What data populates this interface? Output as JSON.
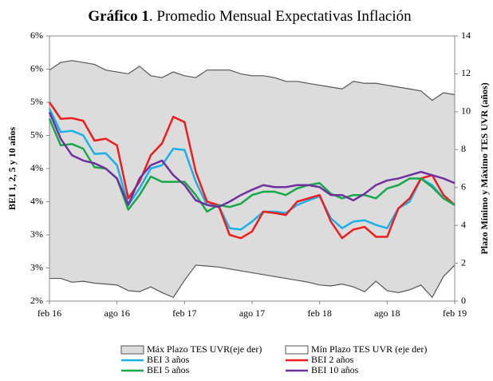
{
  "chart_data": {
    "type": "line",
    "title_bold": "Gráfico 1",
    "title": ". Promedio Mensual Expectativas Inflación",
    "y_label": "BEI 1, 2, 5 y 10 años",
    "y2_label": "Plazo Mínimo y Máximo TES UVR (años)",
    "categories": [
      "feb 16",
      null,
      null,
      null,
      null,
      null,
      "ago 16",
      null,
      null,
      null,
      null,
      null,
      "feb 17",
      null,
      null,
      null,
      null,
      null,
      "ago 17",
      null,
      null,
      null,
      null,
      null,
      "feb 18",
      null,
      null,
      null,
      null,
      null,
      "ago 18",
      null,
      null,
      null,
      null,
      null,
      "feb 19"
    ],
    "ylim": [
      2,
      6
    ],
    "yticks": [
      {
        "value": 2,
        "label": "2%"
      },
      {
        "value": 2.5,
        "label": "3%"
      },
      {
        "value": 3,
        "label": "3%"
      },
      {
        "value": 3.5,
        "label": "4%"
      },
      {
        "value": 4,
        "label": "4%"
      },
      {
        "value": 4.5,
        "label": "5%"
      },
      {
        "value": 5,
        "label": "5%"
      },
      {
        "value": 5.5,
        "label": "6%"
      },
      {
        "value": 6,
        "label": "6%"
      }
    ],
    "y2lim": [
      0,
      14
    ],
    "y2ticks": [
      0,
      2,
      4,
      6,
      8,
      10,
      12,
      14
    ],
    "series": [
      {
        "name": "Máx Plazo TES UVR(eje der)",
        "color": "#dcdcdc",
        "axis": "y2",
        "style": "area",
        "values": [
          12.2,
          12.6,
          12.7,
          12.6,
          12.5,
          12.2,
          12.1,
          12.0,
          12.4,
          11.9,
          11.8,
          12.1,
          11.9,
          11.8,
          12.2,
          12.2,
          12.2,
          12.0,
          11.9,
          11.9,
          11.8,
          11.6,
          11.6,
          11.5,
          11.4,
          11.3,
          11.2,
          11.6,
          11.5,
          11.5,
          11.4,
          11.3,
          11.2,
          11.1,
          10.6,
          11.0,
          10.9
        ]
      },
      {
        "name": "Mín Plazo TES UVR (eje der)",
        "color": "#ffffff",
        "axis": "y2",
        "style": "area",
        "values": [
          1.2,
          1.2,
          1.0,
          1.05,
          0.95,
          0.9,
          0.85,
          0.55,
          0.5,
          0.75,
          0.45,
          0.2,
          1.1,
          1.9,
          1.85,
          1.8,
          1.7,
          1.6,
          1.5,
          1.4,
          1.3,
          1.2,
          1.1,
          1.0,
          0.85,
          0.8,
          0.9,
          0.75,
          0.5,
          1.05,
          0.55,
          0.45,
          0.6,
          0.85,
          0.2,
          1.3,
          1.9
        ]
      },
      {
        "name": "BEI 3 años",
        "color": "#1ab0e8",
        "values": [
          4.9,
          4.55,
          4.57,
          4.5,
          4.22,
          4.23,
          4.05,
          3.45,
          3.7,
          4.0,
          4.05,
          4.3,
          4.28,
          3.8,
          3.45,
          3.45,
          3.1,
          3.08,
          3.2,
          3.35,
          3.35,
          3.33,
          3.45,
          3.52,
          3.58,
          3.25,
          3.1,
          3.2,
          3.22,
          3.15,
          3.1,
          3.4,
          3.5,
          3.85,
          3.75,
          3.55,
          3.45
        ]
      },
      {
        "name": "BEI 2 años",
        "color": "#ee1c1c",
        "values": [
          5.0,
          4.75,
          4.76,
          4.72,
          4.42,
          4.45,
          4.35,
          3.55,
          3.8,
          4.2,
          4.38,
          4.78,
          4.7,
          3.95,
          3.5,
          3.45,
          3.0,
          2.95,
          3.05,
          3.35,
          3.33,
          3.3,
          3.5,
          3.55,
          3.6,
          3.2,
          2.95,
          3.08,
          3.12,
          2.97,
          2.97,
          3.4,
          3.55,
          3.85,
          3.9,
          3.6,
          3.45
        ]
      },
      {
        "name": "BEI 5 años",
        "color": "#17a84a",
        "values": [
          4.75,
          4.35,
          4.37,
          4.3,
          4.02,
          4.0,
          3.85,
          3.38,
          3.6,
          3.88,
          3.8,
          3.8,
          3.8,
          3.6,
          3.35,
          3.45,
          3.42,
          3.47,
          3.6,
          3.65,
          3.65,
          3.6,
          3.7,
          3.75,
          3.78,
          3.62,
          3.55,
          3.6,
          3.6,
          3.55,
          3.7,
          3.75,
          3.85,
          3.85,
          3.72,
          3.55,
          3.45
        ]
      },
      {
        "name": "BEI 10 años",
        "color": "#7030a0",
        "values": [
          4.85,
          4.45,
          4.2,
          4.12,
          4.08,
          4.0,
          3.85,
          3.45,
          3.85,
          4.05,
          4.12,
          3.9,
          3.75,
          3.52,
          3.45,
          3.42,
          3.5,
          3.6,
          3.68,
          3.75,
          3.72,
          3.72,
          3.75,
          3.75,
          3.72,
          3.6,
          3.6,
          3.52,
          3.62,
          3.75,
          3.82,
          3.85,
          3.9,
          3.95,
          3.9,
          3.85,
          3.78
        ]
      }
    ]
  }
}
